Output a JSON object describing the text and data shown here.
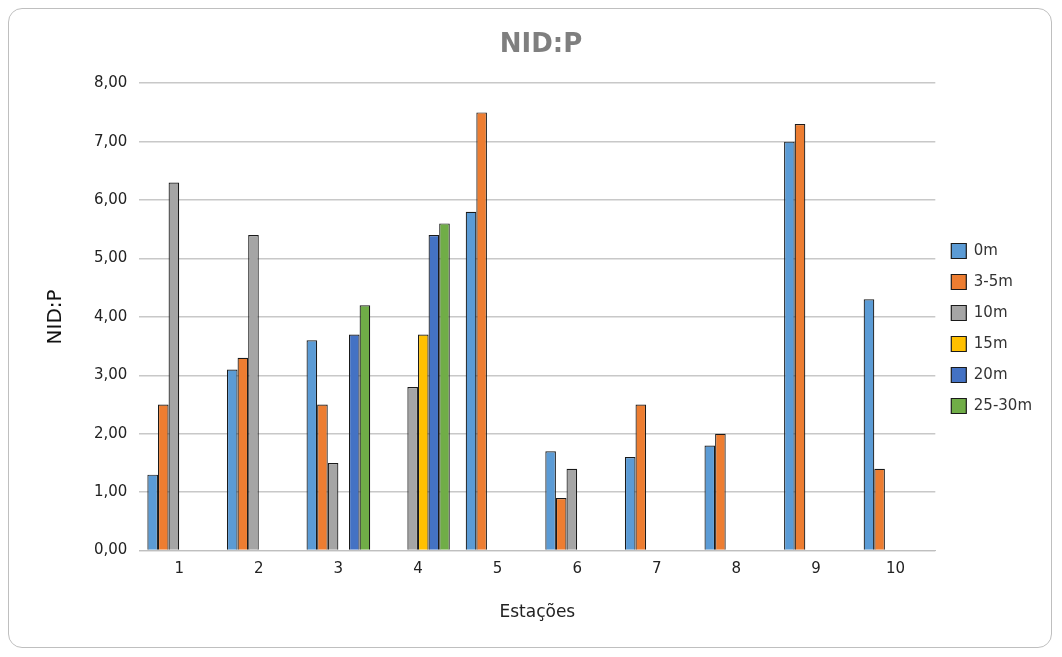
{
  "chart_data": {
    "type": "bar",
    "title": "NID:P",
    "xlabel": "Estações",
    "ylabel": "NID:P",
    "categories": [
      "1",
      "2",
      "3",
      "4",
      "5",
      "6",
      "7",
      "8",
      "9",
      "10"
    ],
    "series": [
      {
        "name": "0m",
        "color": "#5b9bd5",
        "values": [
          1.3,
          3.1,
          3.6,
          null,
          5.8,
          1.7,
          1.6,
          1.8,
          7.0,
          4.3
        ]
      },
      {
        "name": "3-5m",
        "color": "#ed7d31",
        "values": [
          2.5,
          3.3,
          2.5,
          null,
          7.5,
          0.9,
          2.5,
          2.0,
          7.3,
          1.4
        ]
      },
      {
        "name": "10m",
        "color": "#a5a5a5",
        "values": [
          6.3,
          5.4,
          1.5,
          2.8,
          null,
          1.4,
          null,
          null,
          null,
          null
        ]
      },
      {
        "name": "15m",
        "color": "#ffc000",
        "values": [
          null,
          null,
          null,
          3.7,
          null,
          null,
          null,
          null,
          null,
          null
        ]
      },
      {
        "name": "20m",
        "color": "#4472c4",
        "values": [
          null,
          null,
          3.7,
          5.4,
          null,
          null,
          null,
          null,
          null,
          null
        ]
      },
      {
        "name": "25-30m",
        "color": "#70ad47",
        "values": [
          null,
          null,
          4.2,
          5.6,
          null,
          null,
          null,
          null,
          null,
          null
        ]
      }
    ],
    "ylim": [
      0,
      8
    ],
    "yticks": [
      {
        "value": 0,
        "label": "0,00"
      },
      {
        "value": 1,
        "label": "1,00"
      },
      {
        "value": 2,
        "label": "2,00"
      },
      {
        "value": 3,
        "label": "3,00"
      },
      {
        "value": 4,
        "label": "4,00"
      },
      {
        "value": 5,
        "label": "5,00"
      },
      {
        "value": 6,
        "label": "6,00"
      },
      {
        "value": 7,
        "label": "7,00"
      },
      {
        "value": 8,
        "label": "8,00"
      }
    ],
    "grid": "y",
    "legend": "right"
  }
}
